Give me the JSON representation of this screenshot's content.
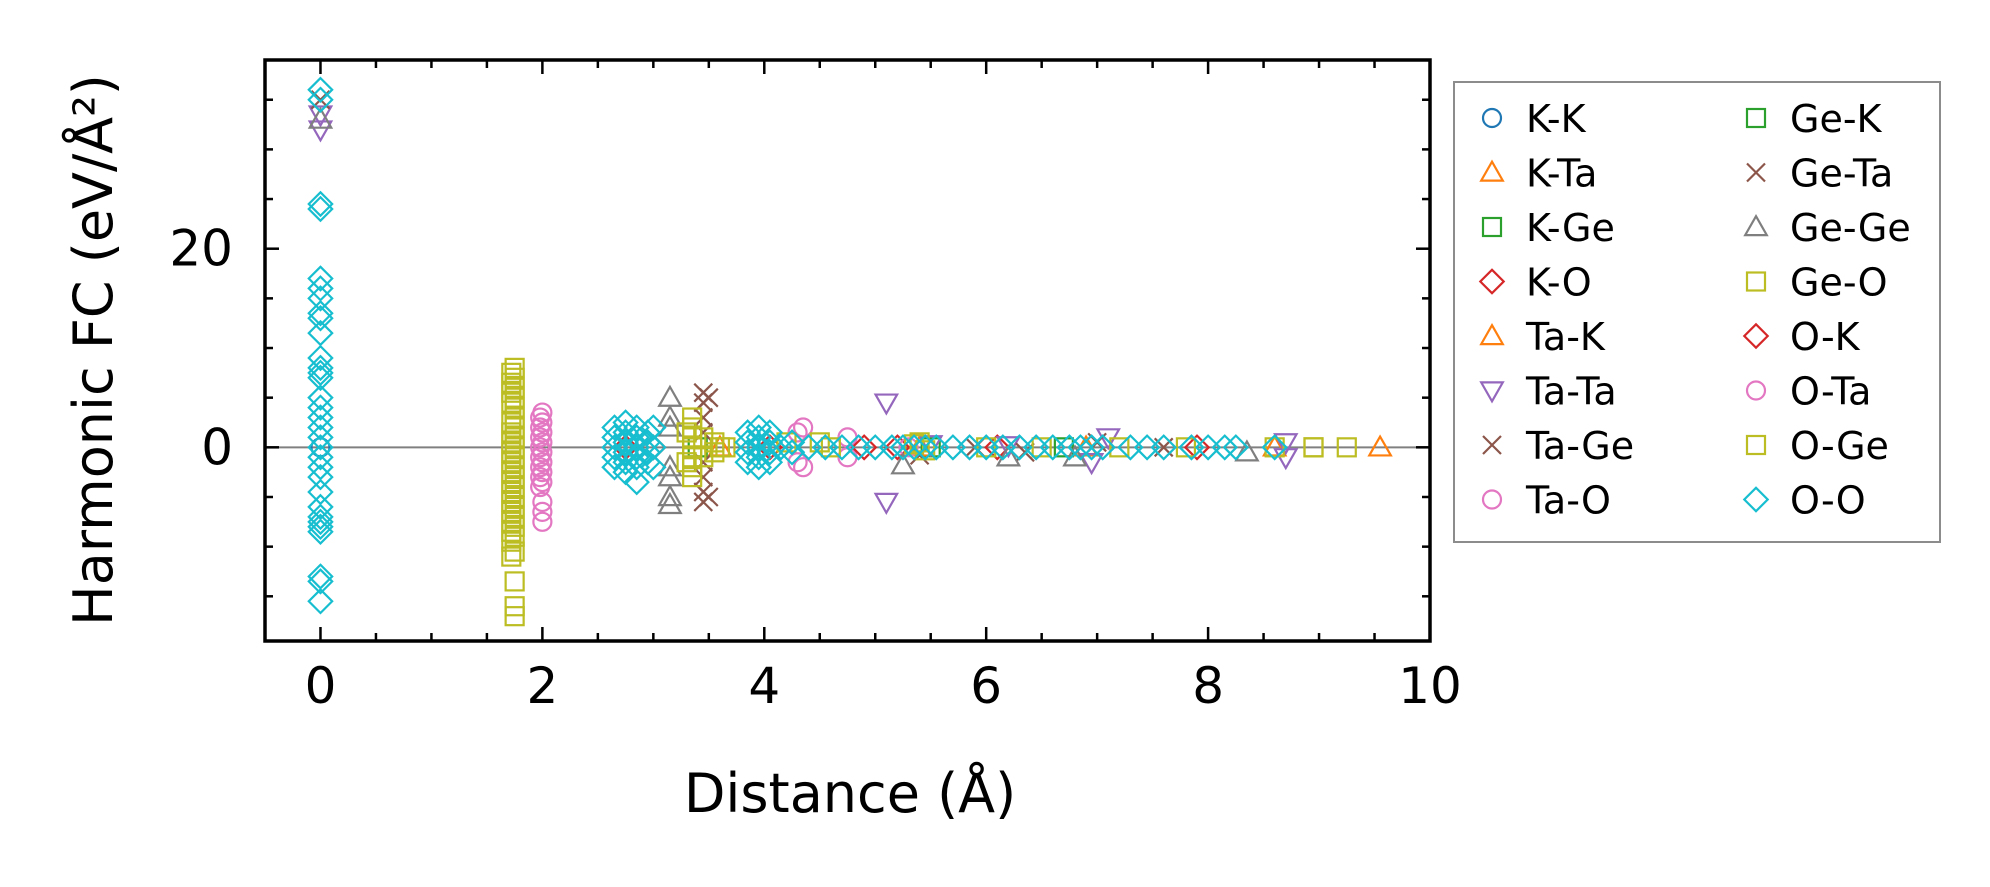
{
  "chart_data": {
    "type": "scatter",
    "title": "",
    "xlabel": "Distance (Å)",
    "ylabel": "Harmonic FC (eV/Å²)",
    "xlim": [
      -0.5,
      10
    ],
    "ylim": [
      -19.5,
      39
    ],
    "x_ticks": [
      0,
      2,
      4,
      6,
      8,
      10
    ],
    "x_tick_labels": [
      "0",
      "2",
      "4",
      "6",
      "8",
      "10"
    ],
    "y_ticks": [
      0,
      20
    ],
    "y_tick_labels": [
      "0",
      "20"
    ],
    "grid": false,
    "zero_line": true,
    "legend_position": "outside-right",
    "legend_columns": 2,
    "series": [
      {
        "name": "K-K",
        "marker": "circle",
        "color": "#1f77b4",
        "points": [
          [
            0,
            0.0
          ]
        ]
      },
      {
        "name": "K-Ta",
        "marker": "triangle-up",
        "color": "#ff7f0e",
        "points": [
          [
            9.55,
            0.0
          ],
          [
            8.6,
            0.0
          ]
        ]
      },
      {
        "name": "K-Ge",
        "marker": "square",
        "color": "#2ca02c",
        "points": [
          [
            3.4,
            0.0
          ],
          [
            5.5,
            0.0
          ]
        ]
      },
      {
        "name": "K-O",
        "marker": "diamond",
        "color": "#d62728",
        "points": [
          [
            2.75,
            0.0
          ],
          [
            4.05,
            0.0
          ],
          [
            5.2,
            0.0
          ],
          [
            6.1,
            0.0
          ]
        ]
      },
      {
        "name": "Ta-K",
        "marker": "triangle-up",
        "color": "#ff7f0e",
        "points": [
          [
            3.6,
            0.0
          ],
          [
            5.4,
            0.0
          ],
          [
            6.9,
            0.0
          ]
        ]
      },
      {
        "name": "Ta-Ta",
        "marker": "triangle-down",
        "color": "#9467bd",
        "points": [
          [
            0,
            32.0
          ],
          [
            0,
            33.5
          ],
          [
            5.1,
            4.5
          ],
          [
            5.1,
            -5.5
          ],
          [
            5.5,
            0.3
          ],
          [
            6.2,
            0.2
          ],
          [
            6.95,
            -1.5
          ],
          [
            7.1,
            1.0
          ],
          [
            8.7,
            -1.0
          ],
          [
            8.7,
            0.5
          ]
        ]
      },
      {
        "name": "Ta-Ge",
        "marker": "x",
        "color": "#8c564b",
        "points": [
          [
            0,
            35.0
          ],
          [
            3.45,
            5.5
          ],
          [
            3.45,
            4.5
          ],
          [
            3.45,
            3.0
          ],
          [
            3.45,
            1.5
          ],
          [
            3.45,
            -1.5
          ],
          [
            3.45,
            -3.0
          ],
          [
            3.45,
            -4.5
          ],
          [
            3.45,
            -5.5
          ],
          [
            5.4,
            -0.8
          ],
          [
            6.35,
            -0.5
          ],
          [
            7.0,
            0.5
          ]
        ]
      },
      {
        "name": "Ta-O",
        "marker": "circle",
        "color": "#e377c2",
        "points": [
          [
            2.0,
            3.5
          ],
          [
            2.0,
            2.5
          ],
          [
            2.0,
            1.5
          ],
          [
            2.0,
            0.5
          ],
          [
            2.0,
            -0.5
          ],
          [
            2.0,
            -1.5
          ],
          [
            2.0,
            -2.5
          ],
          [
            2.0,
            -3.5
          ],
          [
            2.0,
            -5.5
          ],
          [
            2.0,
            -6.5
          ],
          [
            2.0,
            -7.5
          ],
          [
            4.35,
            2.0
          ],
          [
            4.35,
            -2.0
          ],
          [
            4.75,
            1.0
          ],
          [
            4.75,
            -1.0
          ],
          [
            5.3,
            0.0
          ]
        ]
      },
      {
        "name": "Ge-K",
        "marker": "square",
        "color": "#2ca02c",
        "points": [
          [
            6.7,
            0.0
          ]
        ]
      },
      {
        "name": "Ge-Ta",
        "marker": "x",
        "color": "#8c564b",
        "points": [
          [
            3.5,
            5.0
          ],
          [
            3.5,
            -5.0
          ],
          [
            5.9,
            0.0
          ],
          [
            7.6,
            0.0
          ]
        ]
      },
      {
        "name": "Ge-Ge",
        "marker": "triangle-up",
        "color": "#7f7f7f",
        "points": [
          [
            0,
            33.0
          ],
          [
            3.15,
            5.0
          ],
          [
            3.15,
            3.0
          ],
          [
            3.15,
            2.0
          ],
          [
            3.15,
            -2.0
          ],
          [
            3.15,
            -3.0
          ],
          [
            3.15,
            -5.0
          ],
          [
            3.15,
            -5.8
          ],
          [
            5.25,
            -1.8
          ],
          [
            6.2,
            -1.0
          ],
          [
            6.8,
            -1.0
          ],
          [
            8.35,
            -0.5
          ]
        ]
      },
      {
        "name": "Ge-O",
        "marker": "square",
        "color": "#bcbd22",
        "points": [
          [
            1.75,
            8.0
          ],
          [
            1.75,
            7.0
          ],
          [
            1.75,
            6.0
          ],
          [
            1.75,
            5.0
          ],
          [
            1.75,
            4.0
          ],
          [
            1.75,
            3.0
          ],
          [
            1.75,
            2.0
          ],
          [
            1.75,
            1.0
          ],
          [
            1.75,
            0.0
          ],
          [
            1.75,
            -1.0
          ],
          [
            1.75,
            -2.0
          ],
          [
            1.75,
            -3.0
          ],
          [
            1.75,
            -4.0
          ],
          [
            1.75,
            -5.0
          ],
          [
            1.75,
            -6.0
          ],
          [
            1.75,
            -7.0
          ],
          [
            1.75,
            -8.0
          ],
          [
            1.75,
            -9.0
          ],
          [
            1.75,
            -10.5
          ],
          [
            1.75,
            -13.5
          ],
          [
            1.75,
            -16.0
          ],
          [
            1.75,
            -17.0
          ],
          [
            3.3,
            1.5
          ],
          [
            3.3,
            -1.5
          ],
          [
            3.6,
            0.0
          ],
          [
            4.5,
            0.5
          ],
          [
            5.4,
            0.5
          ],
          [
            8.95,
            0.0
          ],
          [
            9.25,
            0.0
          ]
        ]
      },
      {
        "name": "O-K",
        "marker": "diamond",
        "color": "#d62728",
        "points": [
          [
            3.0,
            0.0
          ],
          [
            4.9,
            0.0
          ],
          [
            7.9,
            0.0
          ]
        ]
      },
      {
        "name": "O-Ta",
        "marker": "circle",
        "color": "#e377c2",
        "points": [
          [
            1.98,
            3.0
          ],
          [
            1.98,
            2.0
          ],
          [
            1.98,
            1.0
          ],
          [
            1.98,
            0.0
          ],
          [
            1.98,
            -1.0
          ],
          [
            1.98,
            -2.0
          ],
          [
            1.98,
            -3.0
          ],
          [
            1.98,
            -4.0
          ],
          [
            4.3,
            1.5
          ],
          [
            4.3,
            -1.5
          ]
        ]
      },
      {
        "name": "O-Ge",
        "marker": "square",
        "color": "#bcbd22",
        "points": [
          [
            1.72,
            7.5
          ],
          [
            1.72,
            6.5
          ],
          [
            1.72,
            5.5
          ],
          [
            1.72,
            4.5
          ],
          [
            1.72,
            2.5
          ],
          [
            1.72,
            1.5
          ],
          [
            1.72,
            0.5
          ],
          [
            1.72,
            -0.5
          ],
          [
            1.72,
            -1.5
          ],
          [
            1.72,
            -2.5
          ],
          [
            1.72,
            -3.5
          ],
          [
            1.72,
            -4.5
          ],
          [
            1.72,
            -5.5
          ],
          [
            1.72,
            -6.5
          ],
          [
            1.72,
            -7.5
          ],
          [
            1.72,
            -8.5
          ],
          [
            1.72,
            -9.5
          ],
          [
            1.72,
            -11.0
          ],
          [
            3.35,
            3.0
          ],
          [
            3.35,
            2.0
          ],
          [
            3.35,
            1.0
          ],
          [
            3.35,
            0.0
          ],
          [
            3.35,
            -1.0
          ],
          [
            3.35,
            -2.0
          ],
          [
            3.35,
            -3.0
          ],
          [
            3.45,
            1.0
          ],
          [
            3.45,
            -1.0
          ],
          [
            3.55,
            0.5
          ],
          [
            3.55,
            -0.5
          ],
          [
            3.65,
            0.0
          ],
          [
            4.2,
            0.5
          ],
          [
            4.6,
            0.0
          ],
          [
            5.35,
            0.3
          ],
          [
            5.45,
            -0.3
          ],
          [
            6.0,
            0.0
          ],
          [
            6.5,
            0.0
          ],
          [
            7.2,
            0.0
          ],
          [
            7.8,
            0.0
          ],
          [
            8.6,
            0.0
          ],
          [
            8.95,
            0.0
          ]
        ]
      },
      {
        "name": "O-O",
        "marker": "diamond",
        "color": "#17becf",
        "points": [
          [
            0,
            36.0
          ],
          [
            0,
            35.0
          ],
          [
            0,
            24.5
          ],
          [
            0,
            24.0
          ],
          [
            0,
            17.0
          ],
          [
            0,
            16.0
          ],
          [
            0,
            15.0
          ],
          [
            0,
            13.5
          ],
          [
            0,
            13.0
          ],
          [
            0,
            11.5
          ],
          [
            0,
            9.0
          ],
          [
            0,
            8.0
          ],
          [
            0,
            7.5
          ],
          [
            0,
            7.0
          ],
          [
            0,
            5.0
          ],
          [
            0,
            4.0
          ],
          [
            0,
            3.0
          ],
          [
            0,
            2.0
          ],
          [
            0,
            1.0
          ],
          [
            0,
            0.0
          ],
          [
            0,
            -1.0
          ],
          [
            0,
            -2.0
          ],
          [
            0,
            -3.0
          ],
          [
            0,
            -4.5
          ],
          [
            0,
            -6.0
          ],
          [
            0,
            -7.0
          ],
          [
            0,
            -7.5
          ],
          [
            0,
            -8.0
          ],
          [
            0,
            -8.5
          ],
          [
            0,
            -13.0
          ],
          [
            0,
            -13.5
          ],
          [
            0,
            -15.5
          ],
          [
            2.65,
            2.0
          ],
          [
            2.65,
            1.0
          ],
          [
            2.65,
            0.0
          ],
          [
            2.65,
            -1.0
          ],
          [
            2.65,
            -2.0
          ],
          [
            2.75,
            2.5
          ],
          [
            2.75,
            1.5
          ],
          [
            2.75,
            0.5
          ],
          [
            2.75,
            -0.5
          ],
          [
            2.75,
            -1.5
          ],
          [
            2.75,
            -2.5
          ],
          [
            2.85,
            2.0
          ],
          [
            2.85,
            1.0
          ],
          [
            2.85,
            0.0
          ],
          [
            2.85,
            -1.0
          ],
          [
            2.85,
            -2.0
          ],
          [
            2.85,
            -3.5
          ],
          [
            2.95,
            1.5
          ],
          [
            2.95,
            0.5
          ],
          [
            2.95,
            -0.5
          ],
          [
            2.95,
            -1.5
          ],
          [
            3.0,
            2.0
          ],
          [
            3.0,
            0.0
          ],
          [
            3.0,
            -2.0
          ],
          [
            3.85,
            1.5
          ],
          [
            3.85,
            0.5
          ],
          [
            3.85,
            -0.5
          ],
          [
            3.85,
            -1.5
          ],
          [
            3.95,
            2.0
          ],
          [
            3.95,
            1.0
          ],
          [
            3.95,
            0.0
          ],
          [
            3.95,
            -1.0
          ],
          [
            3.95,
            -2.0
          ],
          [
            4.05,
            1.5
          ],
          [
            4.05,
            0.5
          ],
          [
            4.05,
            -0.5
          ],
          [
            4.05,
            -1.5
          ],
          [
            4.15,
            0.0
          ],
          [
            4.25,
            0.5
          ],
          [
            4.25,
            -0.5
          ],
          [
            4.4,
            0.0
          ],
          [
            4.55,
            0.0
          ],
          [
            4.7,
            0.0
          ],
          [
            4.85,
            0.0
          ],
          [
            5.0,
            0.0
          ],
          [
            5.15,
            0.0
          ],
          [
            5.25,
            0.0
          ],
          [
            5.35,
            0.0
          ],
          [
            5.45,
            0.0
          ],
          [
            5.55,
            0.0
          ],
          [
            5.7,
            0.0
          ],
          [
            5.85,
            0.0
          ],
          [
            6.0,
            0.0
          ],
          [
            6.15,
            0.0
          ],
          [
            6.3,
            0.0
          ],
          [
            6.45,
            0.0
          ],
          [
            6.6,
            0.0
          ],
          [
            6.75,
            0.0
          ],
          [
            6.85,
            0.0
          ],
          [
            6.95,
            0.0
          ],
          [
            7.05,
            0.0
          ],
          [
            7.3,
            0.0
          ],
          [
            7.45,
            0.0
          ],
          [
            7.6,
            0.0
          ],
          [
            7.85,
            0.0
          ],
          [
            8.0,
            0.0
          ],
          [
            8.15,
            0.0
          ],
          [
            8.25,
            0.0
          ],
          [
            8.6,
            0.0
          ]
        ]
      }
    ]
  }
}
